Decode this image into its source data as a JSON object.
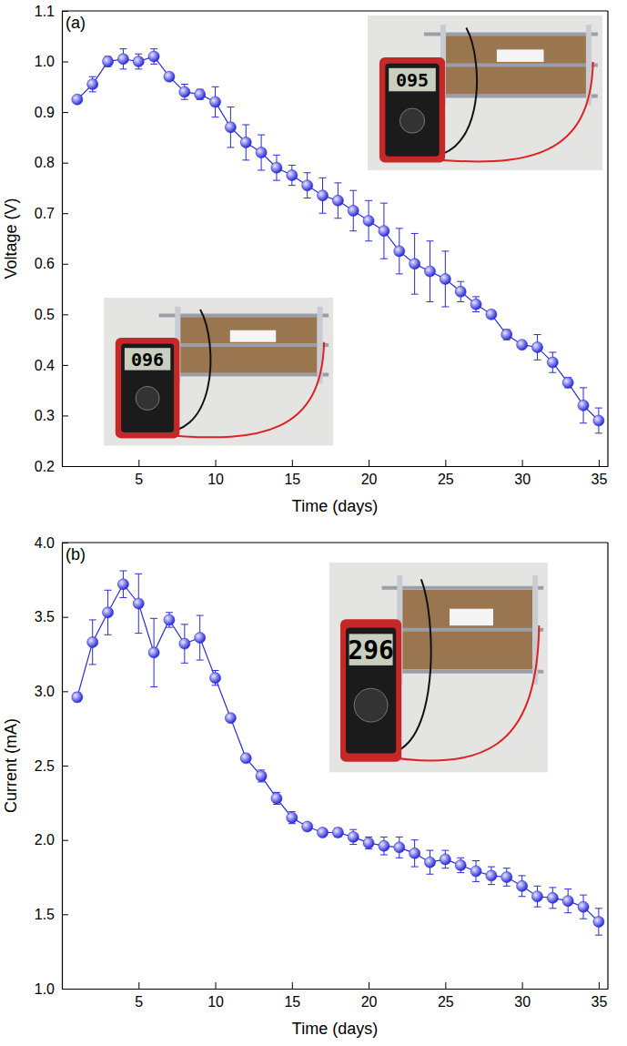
{
  "chart_data": [
    {
      "type": "line",
      "panel_label": "(a)",
      "x_label": "Time (days)",
      "y_label": "Voltage (V)",
      "marker": "circle",
      "line_style": "solid",
      "grid": false,
      "x": [
        1,
        2,
        3,
        4,
        5,
        6,
        7,
        8,
        9,
        10,
        11,
        12,
        13,
        14,
        15,
        16,
        17,
        18,
        19,
        20,
        21,
        22,
        23,
        24,
        25,
        26,
        27,
        28,
        29,
        30,
        31,
        32,
        33,
        34,
        35
      ],
      "series": [
        {
          "color": "#2b2bd9",
          "values": [
            0.925,
            0.955,
            1.0,
            1.005,
            1.0,
            1.01,
            0.97,
            0.94,
            0.935,
            0.92,
            0.87,
            0.84,
            0.82,
            0.79,
            0.775,
            0.755,
            0.735,
            0.725,
            0.705,
            0.685,
            0.665,
            0.625,
            0.6,
            0.585,
            0.57,
            0.545,
            0.52,
            0.5,
            0.46,
            0.44,
            0.435,
            0.405,
            0.365,
            0.32,
            0.29
          ],
          "error": [
            0.005,
            0.015,
            0.01,
            0.02,
            0.015,
            0.015,
            0.005,
            0.015,
            0.01,
            0.03,
            0.04,
            0.035,
            0.035,
            0.025,
            0.02,
            0.025,
            0.035,
            0.035,
            0.04,
            0.04,
            0.055,
            0.045,
            0.06,
            0.06,
            0.055,
            0.02,
            0.015,
            0.005,
            0.01,
            0.005,
            0.025,
            0.02,
            0.01,
            0.035,
            0.025
          ]
        }
      ],
      "xlim": [
        0,
        35.6
      ],
      "xticks": [
        5,
        10,
        15,
        20,
        25,
        30,
        35
      ],
      "ylim": [
        0.2,
        1.1
      ],
      "yticks": [
        0.2,
        0.3,
        0.4,
        0.5,
        0.6,
        0.7,
        0.8,
        0.9,
        {
          "value": 1,
          "label": "1.0"
        },
        1.1
      ],
      "annotations": [
        "095",
        "096"
      ]
    },
    {
      "type": "line",
      "panel_label": "(b)",
      "x_label": "Time (days)",
      "y_label": "Current (mA)",
      "marker": "circle",
      "line_style": "solid",
      "grid": false,
      "x": [
        1,
        2,
        3,
        4,
        5,
        6,
        7,
        8,
        9,
        10,
        11,
        12,
        13,
        14,
        15,
        16,
        17,
        18,
        19,
        20,
        21,
        22,
        23,
        24,
        25,
        26,
        27,
        28,
        29,
        30,
        31,
        32,
        33,
        34,
        35
      ],
      "series": [
        {
          "color": "#2b2bd9",
          "values": [
            2.96,
            3.33,
            3.53,
            3.72,
            3.59,
            3.26,
            3.48,
            3.32,
            3.36,
            3.09,
            2.82,
            2.55,
            2.43,
            2.28,
            2.15,
            2.09,
            2.05,
            2.05,
            2.02,
            1.98,
            1.96,
            1.95,
            1.91,
            1.85,
            1.87,
            1.83,
            1.79,
            1.76,
            1.75,
            1.69,
            1.62,
            1.61,
            1.59,
            1.55,
            1.45
          ],
          "error": [
            0.03,
            0.15,
            0.15,
            0.09,
            0.2,
            0.23,
            0.05,
            0.13,
            0.15,
            0.05,
            0.01,
            0.02,
            0.04,
            0.04,
            0.04,
            0.02,
            0.02,
            0.03,
            0.05,
            0.04,
            0.06,
            0.07,
            0.09,
            0.08,
            0.06,
            0.05,
            0.07,
            0.06,
            0.06,
            0.07,
            0.07,
            0.07,
            0.08,
            0.08,
            0.09
          ]
        }
      ],
      "xlim": [
        0,
        35.6
      ],
      "xticks": [
        5,
        10,
        15,
        20,
        25,
        30,
        35
      ],
      "ylim": [
        1,
        4
      ],
      "yticks": [
        {
          "value": 1,
          "label": "1.0"
        },
        1.5,
        {
          "value": 2,
          "label": "2.0"
        },
        2.5,
        {
          "value": 3,
          "label": "3.0"
        },
        3.5,
        {
          "value": 4,
          "label": "4.0"
        }
      ],
      "annotations": [
        "296"
      ]
    }
  ]
}
